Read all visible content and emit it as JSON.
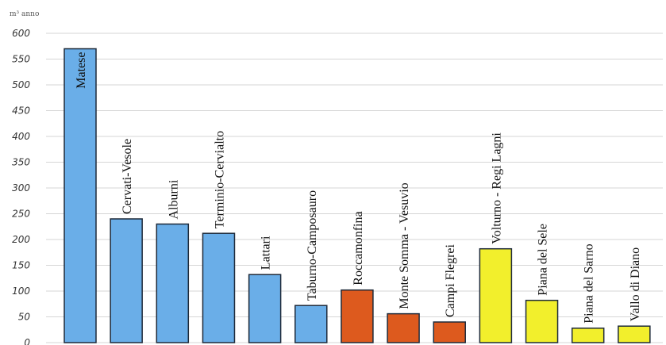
{
  "chart_data": {
    "type": "bar",
    "title": "",
    "xlabel": "",
    "ylabel": "m³ anno",
    "ylim": [
      0,
      600
    ],
    "yticks": [
      0,
      50,
      100,
      150,
      200,
      250,
      300,
      350,
      400,
      450,
      500,
      550,
      600
    ],
    "grid": true,
    "categories": [
      "Matese",
      "Cervati-Vesole",
      "Alburni",
      "Terminio-Cervialto",
      "Lattari",
      "Taburno-Camposauro",
      "Roccamonfina",
      "Monte Somma - Vesuvio",
      "Campi Flegrei",
      "Volturno - Regi Lagni",
      "Piana del Sele",
      "Piana del Sarno",
      "Vallo di Diano"
    ],
    "values": [
      570,
      240,
      230,
      212,
      132,
      72,
      102,
      56,
      40,
      182,
      82,
      28,
      32
    ],
    "bar_colors": [
      "#6aaee8",
      "#6aaee8",
      "#6aaee8",
      "#6aaee8",
      "#6aaee8",
      "#6aaee8",
      "#dd5a1e",
      "#dd5a1e",
      "#dd5a1e",
      "#f2ef2c",
      "#f2ef2c",
      "#f2ef2c",
      "#f2ef2c"
    ]
  }
}
